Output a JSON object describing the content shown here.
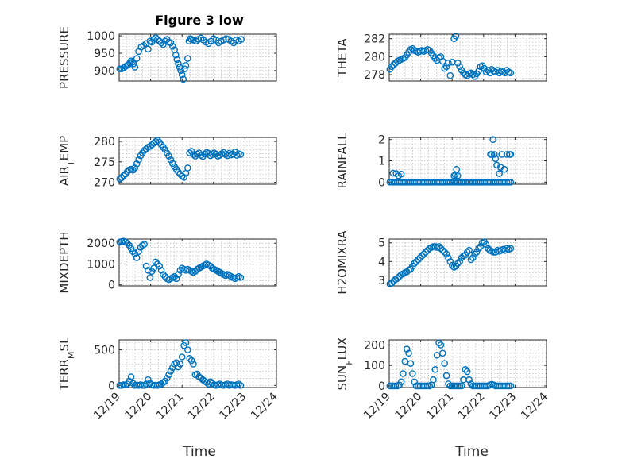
{
  "figure": {
    "title": "Figure 3 low",
    "marker_color": "#0072BD",
    "xlabel": "Time",
    "xticks": [
      "12/19",
      "12/20",
      "12/21",
      "12/22",
      "12/23",
      "12/24"
    ]
  },
  "chart_data": [
    {
      "type": "scatter",
      "ylabel": "PRESSURE",
      "xlim": [
        0,
        5
      ],
      "ylim": [
        870,
        1005
      ],
      "yticks": [
        "900",
        "950",
        "1000"
      ],
      "ytick_values": [
        900,
        950,
        1000
      ],
      "show_xticklabels": false,
      "x": [
        0.02,
        0.08,
        0.14,
        0.2,
        0.26,
        0.3,
        0.34,
        0.38,
        0.42,
        0.46,
        0.5,
        0.56,
        0.62,
        0.7,
        0.78,
        0.86,
        0.92,
        0.98,
        1.04,
        1.1,
        1.16,
        1.22,
        1.28,
        1.34,
        1.4,
        1.46,
        1.52,
        1.58,
        1.64,
        1.7,
        1.76,
        1.8,
        1.84,
        1.88,
        1.92,
        1.96,
        2.0,
        2.04,
        2.08,
        2.12,
        2.18,
        2.22,
        2.26,
        2.3,
        2.36,
        2.44,
        2.52,
        2.6,
        2.68,
        2.76,
        2.84,
        2.92,
        3.0,
        3.08,
        3.16,
        3.24,
        3.32,
        3.4,
        3.48,
        3.56,
        3.64,
        3.72,
        3.8,
        3.88
      ],
      "y": [
        905,
        905,
        908,
        912,
        915,
        918,
        922,
        928,
        925,
        920,
        910,
        935,
        955,
        968,
        972,
        978,
        962,
        985,
        982,
        990,
        995,
        990,
        985,
        980,
        975,
        985,
        990,
        982,
        980,
        970,
        960,
        945,
        932,
        920,
        910,
        900,
        888,
        875,
        905,
        915,
        935,
        985,
        992,
        990,
        988,
        985,
        990,
        994,
        988,
        982,
        978,
        985,
        992,
        988,
        980,
        985,
        988,
        992,
        990,
        985,
        980,
        988,
        985,
        990
      ]
    },
    {
      "type": "scatter",
      "ylabel": "THETA",
      "xlim": [
        0,
        5
      ],
      "ylim": [
        277.3,
        282.5
      ],
      "yticks": [
        "278",
        "280",
        "282"
      ],
      "ytick_values": [
        278,
        280,
        282
      ],
      "show_xticklabels": false,
      "x": [
        0.02,
        0.08,
        0.14,
        0.2,
        0.26,
        0.32,
        0.38,
        0.44,
        0.5,
        0.56,
        0.62,
        0.68,
        0.74,
        0.8,
        0.86,
        0.92,
        0.98,
        1.04,
        1.1,
        1.16,
        1.22,
        1.28,
        1.34,
        1.4,
        1.46,
        1.52,
        1.58,
        1.64,
        1.7,
        1.76,
        1.82,
        1.88,
        1.94,
        2.0,
        2.06,
        2.12,
        2.18,
        2.24,
        2.3,
        2.36,
        2.42,
        2.48,
        2.54,
        2.6,
        2.66,
        2.72,
        2.78,
        2.84,
        2.9,
        2.96,
        3.02,
        3.08,
        3.14,
        3.2,
        3.26,
        3.32,
        3.38,
        3.44,
        3.5,
        3.56,
        3.62,
        3.68,
        3.74,
        3.8,
        3.86
      ],
      "y": [
        278.6,
        278.9,
        279.1,
        279.3,
        279.5,
        279.6,
        279.7,
        279.8,
        279.9,
        280.2,
        280.5,
        280.8,
        280.9,
        280.7,
        280.6,
        280.5,
        280.6,
        280.7,
        280.6,
        280.7,
        280.8,
        280.7,
        280.4,
        280.1,
        279.8,
        279.6,
        279.9,
        280.0,
        279.5,
        278.7,
        278.9,
        279.3,
        277.9,
        279.4,
        282.0,
        282.3,
        279.3,
        278.9,
        278.5,
        278.2,
        278.0,
        277.9,
        278.1,
        278.2,
        278.0,
        277.8,
        278.1,
        278.4,
        278.9,
        279.0,
        278.7,
        278.3,
        278.5,
        278.2,
        278.6,
        278.4,
        278.3,
        278.5,
        278.2,
        278.4,
        278.3,
        278.2,
        278.5,
        278.3,
        278.2
      ]
    },
    {
      "type": "scatter",
      "ylabel": "AIR_TEMP",
      "xlim": [
        0,
        5
      ],
      "ylim": [
        269.5,
        281
      ],
      "yticks": [
        "270",
        "275",
        "280"
      ],
      "ytick_values": [
        270,
        275,
        280
      ],
      "show_xticklabels": false,
      "x": [
        0.02,
        0.08,
        0.14,
        0.2,
        0.26,
        0.32,
        0.38,
        0.44,
        0.5,
        0.56,
        0.62,
        0.68,
        0.74,
        0.8,
        0.86,
        0.92,
        0.98,
        1.04,
        1.1,
        1.16,
        1.22,
        1.28,
        1.34,
        1.4,
        1.46,
        1.52,
        1.58,
        1.64,
        1.7,
        1.76,
        1.82,
        1.88,
        1.94,
        2.0,
        2.06,
        2.12,
        2.18,
        2.24,
        2.3,
        2.36,
        2.42,
        2.48,
        2.54,
        2.6,
        2.66,
        2.72,
        2.78,
        2.84,
        2.9,
        2.96,
        3.02,
        3.08,
        3.14,
        3.2,
        3.26,
        3.32,
        3.38,
        3.44,
        3.5,
        3.56,
        3.62,
        3.68,
        3.74,
        3.8,
        3.86
      ],
      "y": [
        270.8,
        271.1,
        271.6,
        272.0,
        272.6,
        273.0,
        273.2,
        273.0,
        273.5,
        274.5,
        275.5,
        276.5,
        277.2,
        277.8,
        278.2,
        278.6,
        278.8,
        279.2,
        279.6,
        280.0,
        280.3,
        279.8,
        279.2,
        278.6,
        278.0,
        277.2,
        276.4,
        275.5,
        274.6,
        273.8,
        273.2,
        272.5,
        272.0,
        271.5,
        271.2,
        272.2,
        273.5,
        277.2,
        277.6,
        276.8,
        276.4,
        276.9,
        277.2,
        276.6,
        276.3,
        276.9,
        277.3,
        277.1,
        276.5,
        276.8,
        277.2,
        276.9,
        276.4,
        276.6,
        277.0,
        277.3,
        276.8,
        276.5,
        277.1,
        276.7,
        276.9,
        277.4,
        276.6,
        277.0,
        276.8
      ]
    },
    {
      "type": "scatter",
      "ylabel": "RAINFALL",
      "xlim": [
        0,
        5
      ],
      "ylim": [
        -0.1,
        2.1
      ],
      "yticks": [
        "0",
        "1",
        "2"
      ],
      "ytick_values": [
        0,
        1,
        2
      ],
      "show_xticklabels": false,
      "x": [
        0.02,
        0.08,
        0.14,
        0.2,
        0.26,
        0.32,
        0.38,
        0.44,
        0.5,
        0.56,
        0.62,
        0.68,
        0.74,
        0.8,
        0.86,
        0.92,
        0.98,
        1.04,
        1.1,
        1.16,
        1.22,
        1.28,
        1.34,
        1.4,
        1.46,
        1.52,
        1.58,
        1.64,
        1.7,
        1.76,
        1.82,
        1.88,
        1.94,
        2.0,
        2.06,
        2.12,
        2.18,
        2.24,
        2.3,
        2.36,
        2.42,
        2.48,
        2.54,
        2.6,
        2.66,
        2.72,
        2.78,
        2.84,
        2.9,
        2.96,
        3.02,
        3.08,
        3.14,
        3.2,
        3.26,
        3.32,
        3.38,
        3.44,
        3.5,
        3.56,
        3.62,
        3.68,
        3.74,
        3.8,
        3.86,
        0.12,
        0.22,
        0.3,
        0.38,
        2.06,
        2.1,
        2.14,
        2.18,
        3.22,
        3.26,
        3.3,
        3.34,
        3.38,
        3.42,
        3.5,
        3.54,
        3.58,
        3.66,
        3.74,
        3.82,
        3.86
      ],
      "y": [
        0,
        0,
        0,
        0,
        0,
        0,
        0,
        0,
        0,
        0,
        0,
        0,
        0,
        0,
        0,
        0,
        0,
        0,
        0,
        0,
        0,
        0,
        0,
        0,
        0,
        0,
        0,
        0,
        0,
        0,
        0,
        0,
        0,
        0,
        0,
        0,
        0,
        0,
        0,
        0,
        0,
        0,
        0,
        0,
        0,
        0,
        0,
        0,
        0,
        0,
        0,
        0,
        0,
        0,
        0,
        0,
        0,
        0,
        0,
        0,
        0,
        0,
        0,
        0,
        0,
        0.42,
        0.4,
        0.3,
        0.38,
        0.3,
        0.35,
        0.6,
        0.3,
        1.3,
        1.3,
        2.0,
        1.3,
        1.1,
        0.8,
        0.4,
        0.7,
        1.3,
        0.6,
        1.3,
        1.3,
        1.3
      ]
    },
    {
      "type": "scatter",
      "ylabel": "MIXDEPTH",
      "xlim": [
        0,
        5
      ],
      "ylim": [
        -50,
        2200
      ],
      "yticks": [
        "0",
        "1000",
        "2000"
      ],
      "ytick_values": [
        0,
        1000,
        2000
      ],
      "show_xticklabels": false,
      "x": [
        0.02,
        0.08,
        0.14,
        0.2,
        0.26,
        0.32,
        0.38,
        0.44,
        0.5,
        0.56,
        0.62,
        0.68,
        0.74,
        0.8,
        0.86,
        0.92,
        0.98,
        1.04,
        1.1,
        1.16,
        1.22,
        1.28,
        1.34,
        1.4,
        1.46,
        1.52,
        1.58,
        1.64,
        1.7,
        1.76,
        1.82,
        1.88,
        1.94,
        2.0,
        2.06,
        2.12,
        2.18,
        2.24,
        2.3,
        2.36,
        2.42,
        2.48,
        2.54,
        2.6,
        2.66,
        2.72,
        2.78,
        2.84,
        2.9,
        2.96,
        3.02,
        3.08,
        3.14,
        3.2,
        3.26,
        3.32,
        3.38,
        3.44,
        3.5,
        3.56,
        3.62,
        3.68,
        3.74,
        3.8,
        3.86
      ],
      "y": [
        2050,
        2080,
        2100,
        2060,
        2000,
        1900,
        1750,
        1600,
        1500,
        1300,
        1600,
        1800,
        1900,
        1950,
        900,
        700,
        350,
        650,
        800,
        1100,
        1000,
        900,
        700,
        500,
        400,
        300,
        250,
        300,
        350,
        400,
        300,
        500,
        700,
        800,
        750,
        700,
        750,
        700,
        650,
        600,
        650,
        750,
        800,
        850,
        900,
        950,
        1000,
        950,
        900,
        800,
        750,
        700,
        650,
        600,
        550,
        500,
        450,
        500,
        450,
        400,
        350,
        300,
        350,
        400,
        350
      ]
    },
    {
      "type": "scatter",
      "ylabel": "H2OMIXRA",
      "xlim": [
        0,
        5
      ],
      "ylim": [
        2.7,
        5.2
      ],
      "yticks": [
        "3",
        "4",
        "5"
      ],
      "ytick_values": [
        3,
        4,
        5
      ],
      "show_xticklabels": false,
      "x": [
        0.02,
        0.08,
        0.14,
        0.2,
        0.26,
        0.32,
        0.38,
        0.44,
        0.5,
        0.56,
        0.62,
        0.68,
        0.74,
        0.8,
        0.86,
        0.92,
        0.98,
        1.04,
        1.1,
        1.16,
        1.22,
        1.28,
        1.34,
        1.4,
        1.46,
        1.52,
        1.58,
        1.64,
        1.7,
        1.76,
        1.82,
        1.88,
        1.94,
        2.0,
        2.06,
        2.12,
        2.18,
        2.24,
        2.3,
        2.36,
        2.42,
        2.48,
        2.54,
        2.6,
        2.66,
        2.72,
        2.78,
        2.84,
        2.9,
        2.96,
        3.02,
        3.08,
        3.14,
        3.2,
        3.26,
        3.32,
        3.38,
        3.44,
        3.5,
        3.56,
        3.62,
        3.68,
        3.74,
        3.8,
        3.86
      ],
      "y": [
        2.8,
        2.85,
        2.95,
        3.05,
        3.1,
        3.2,
        3.3,
        3.35,
        3.4,
        3.45,
        3.55,
        3.6,
        3.75,
        3.9,
        4.0,
        4.1,
        4.2,
        4.3,
        4.4,
        4.5,
        4.6,
        4.7,
        4.75,
        4.8,
        4.8,
        4.75,
        4.8,
        4.7,
        4.6,
        4.5,
        4.4,
        4.2,
        4.0,
        3.8,
        3.7,
        3.75,
        3.9,
        4.0,
        4.2,
        4.3,
        4.35,
        4.5,
        4.6,
        4.1,
        4.2,
        4.4,
        4.5,
        4.7,
        4.8,
        5.0,
        5.05,
        4.9,
        4.7,
        4.6,
        4.55,
        4.5,
        4.5,
        4.6,
        4.55,
        4.6,
        4.65,
        4.6,
        4.7,
        4.65,
        4.7
      ]
    },
    {
      "type": "scatter",
      "ylabel": "TERR_MSL",
      "xlim": [
        0,
        5
      ],
      "ylim": [
        -30,
        640
      ],
      "yticks": [
        "0",
        "500"
      ],
      "ytick_values": [
        0,
        500
      ],
      "show_xticklabels": true,
      "x": [
        0.02,
        0.08,
        0.14,
        0.2,
        0.26,
        0.32,
        0.38,
        0.44,
        0.5,
        0.56,
        0.62,
        0.68,
        0.74,
        0.8,
        0.86,
        0.92,
        0.98,
        1.04,
        1.1,
        1.16,
        1.22,
        1.28,
        1.34,
        1.4,
        1.46,
        1.52,
        1.58,
        1.64,
        1.7,
        1.76,
        1.82,
        1.88,
        1.94,
        2.0,
        2.06,
        2.12,
        2.18,
        2.24,
        2.3,
        2.36,
        2.42,
        2.48,
        2.54,
        2.6,
        2.66,
        2.72,
        2.78,
        2.84,
        2.9,
        2.96,
        3.02,
        3.08,
        3.14,
        3.2,
        3.26,
        3.32,
        3.38,
        3.44,
        3.5,
        3.56,
        3.62,
        3.68,
        3.74,
        3.8,
        3.86
      ],
      "y": [
        0,
        0,
        10,
        5,
        20,
        60,
        120,
        30,
        0,
        5,
        0,
        10,
        0,
        0,
        20,
        80,
        30,
        10,
        0,
        5,
        0,
        10,
        20,
        40,
        60,
        100,
        150,
        200,
        250,
        300,
        320,
        260,
        300,
        400,
        560,
        600,
        500,
        380,
        350,
        300,
        150,
        160,
        120,
        100,
        80,
        60,
        40,
        20,
        50,
        30,
        10,
        0,
        10,
        20,
        5,
        0,
        10,
        20,
        0,
        10,
        5,
        0,
        10,
        20,
        0
      ]
    },
    {
      "type": "scatter",
      "ylabel": "SUN_FLUX",
      "xlim": [
        0,
        5
      ],
      "ylim": [
        -8,
        225
      ],
      "yticks": [
        "0",
        "100",
        "200"
      ],
      "ytick_values": [
        0,
        100,
        200
      ],
      "show_xticklabels": true,
      "x": [
        0.02,
        0.08,
        0.14,
        0.2,
        0.26,
        0.32,
        0.38,
        0.44,
        0.5,
        0.56,
        0.62,
        0.68,
        0.74,
        0.8,
        0.86,
        0.92,
        0.98,
        1.04,
        1.1,
        1.16,
        1.22,
        1.28,
        1.34,
        1.4,
        1.46,
        1.52,
        1.58,
        1.64,
        1.7,
        1.76,
        1.82,
        1.88,
        1.94,
        2.0,
        2.06,
        2.12,
        2.18,
        2.24,
        2.3,
        2.36,
        2.42,
        2.48,
        2.54,
        2.6,
        2.66,
        2.72,
        2.78,
        2.84,
        2.9,
        2.96,
        3.02,
        3.08,
        3.14,
        3.2,
        3.26,
        3.32,
        3.38,
        3.44,
        3.5,
        3.56,
        3.62,
        3.68,
        3.74,
        3.8,
        3.86
      ],
      "y": [
        0,
        0,
        0,
        0,
        0,
        5,
        20,
        60,
        120,
        180,
        160,
        110,
        60,
        20,
        0,
        0,
        0,
        0,
        0,
        0,
        0,
        0,
        5,
        30,
        80,
        150,
        210,
        200,
        160,
        110,
        50,
        10,
        0,
        0,
        0,
        0,
        0,
        0,
        0,
        30,
        80,
        70,
        30,
        10,
        0,
        0,
        0,
        0,
        0,
        0,
        0,
        0,
        0,
        5,
        8,
        5,
        0,
        0,
        0,
        0,
        0,
        0,
        0,
        0,
        0
      ]
    }
  ]
}
